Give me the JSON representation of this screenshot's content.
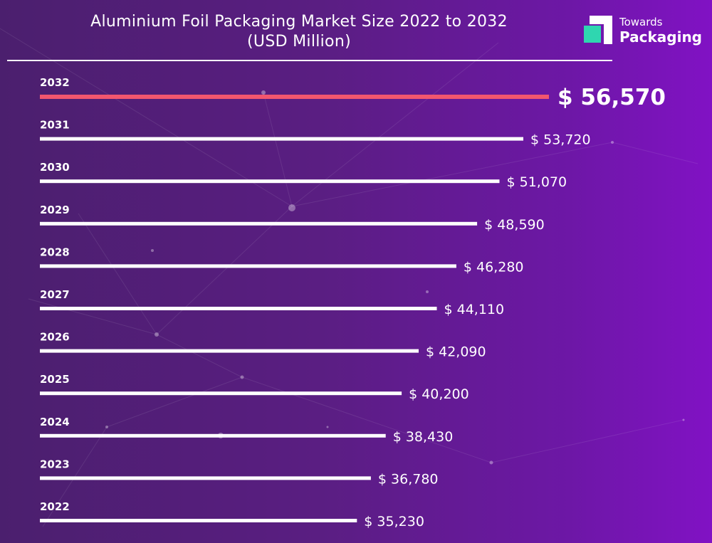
{
  "title_line1": "Aluminium Foil Packaging Market Size 2022 to 2032",
  "title_line2": "(USD Million)",
  "brand": {
    "line1": "Towards",
    "line2": "Packaging",
    "accent_color": "#2fd6b0"
  },
  "colors": {
    "bar": "#ffffff",
    "highlight_bar": "#f2566e",
    "label": "#ffffff"
  },
  "chart_data": {
    "type": "bar",
    "orientation": "horizontal",
    "title": "Aluminium Foil Packaging Market Size 2022 to 2032 (USD Million)",
    "categories": [
      "2032",
      "2031",
      "2030",
      "2029",
      "2028",
      "2027",
      "2026",
      "2025",
      "2024",
      "2023",
      "2022"
    ],
    "values": [
      56570,
      53720,
      51070,
      48590,
      46280,
      44110,
      42090,
      40200,
      38430,
      36780,
      35230
    ],
    "value_labels": [
      "$ 56,570",
      "$ 53,720",
      "$ 51,070",
      "$ 48,590",
      "$ 46,280",
      "$ 44,110",
      "$ 42,090",
      "$ 40,200",
      "$ 38,430",
      "$ 36,780",
      "$ 35,230"
    ],
    "highlight_category": "2032",
    "grid": false,
    "legend": "none"
  }
}
